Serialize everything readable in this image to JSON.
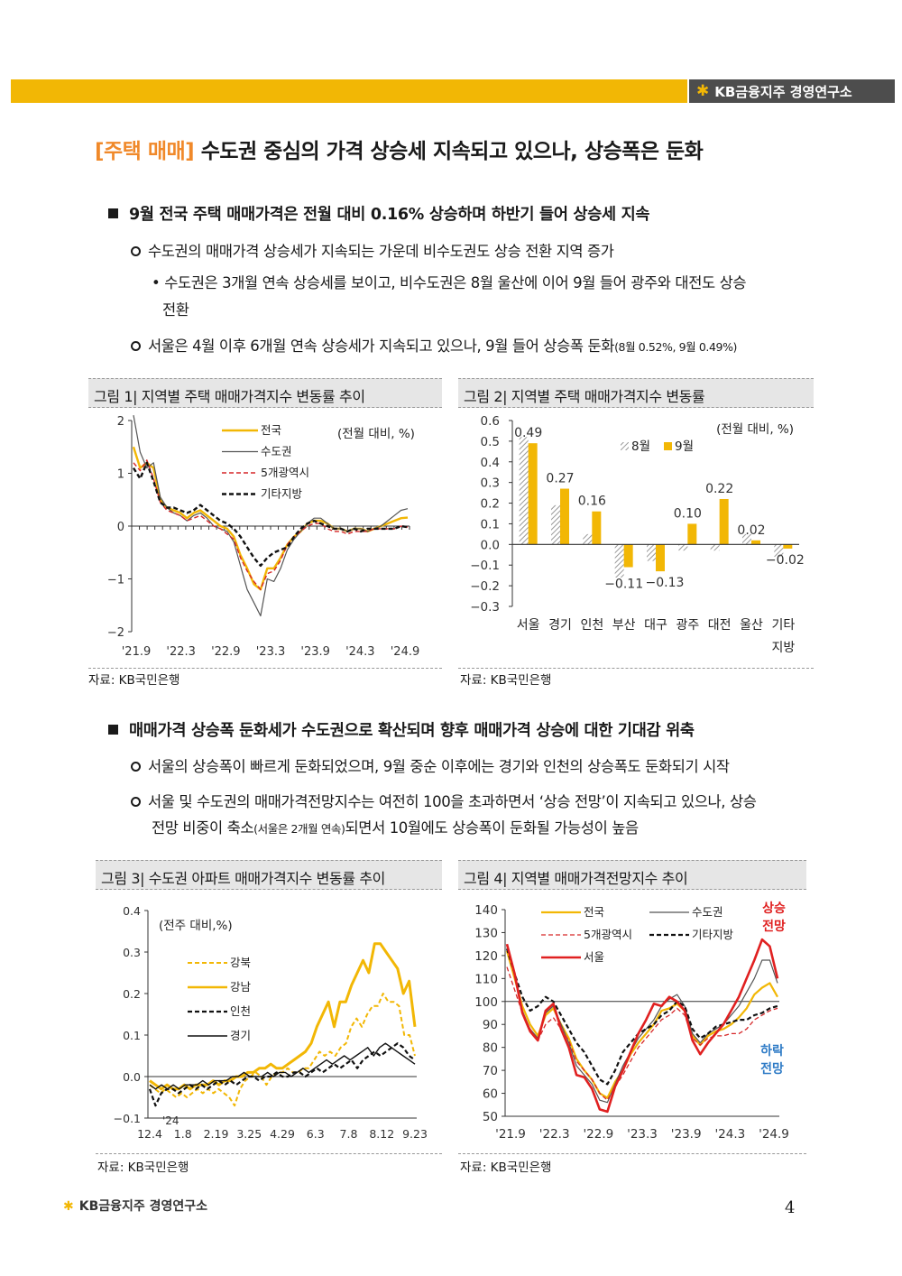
{
  "header": {
    "brand": "KB금융지주 경영연구소"
  },
  "title": {
    "tag": "[주택 매매]",
    "text": "수도권 중심의 가격 상승세 지속되고 있으나, 상승폭은 둔화"
  },
  "section1": {
    "heading": "9월 전국 주택 매매가격은 전월 대비 0.16% 상승하며 하반기 들어 상승세 지속",
    "b1": "수도권의 매매가격 상승세가 지속되는 가운데 비수도권도 상승 전환 지역 증가",
    "b1_sub_line1": "수도권은 3개월 연속 상승세를 보이고, 비수도권은 8월 울산에 이어 9월 들어 광주와 대전도 상승",
    "b1_sub_line2": "전환",
    "b2_main": "서울은 4월 이후 6개월 연속 상승세가 지속되고 있으나, 9월 들어 상승폭 둔화",
    "b2_small": "(8월 0.52%, 9월 0.49%)"
  },
  "section2": {
    "heading": "매매가격 상승폭 둔화세가 수도권으로 확산되며 향후 매매가격 상승에 대한 기대감 위축",
    "b1": "서울의 상승폭이 빠르게 둔화되었으며, 9월 중순 이후에는 경기와 인천의 상승폭도 둔화되기 시작",
    "b2_line1": "서울 및 수도권의 매매가격전망지수는 여전히 100을 초과하면서 ‘상승 전망’이 지속되고 있으나, 상승",
    "b2_line2_a": "전망 비중이 축소",
    "b2_line2_small": "(서울은 2개월 연속)",
    "b2_line2_b": "되면서 10월에도 상승폭이 둔화될 가능성이 높음"
  },
  "source_label": "자료: KB국민은행",
  "page_number": "4",
  "footer": {
    "brand": "KB금융지주 경영연구소"
  },
  "chart_data": [
    {
      "id": "fig1",
      "type": "line",
      "caption": "그림 1| 지역별 주택 매매가격지수 변동률 추이",
      "unit_note": "(전월 대비, %)",
      "x_labels": [
        "'21.9",
        "'22.3",
        "'22.9",
        "'23.3",
        "'23.9",
        "'24.3",
        "'24.9"
      ],
      "y_ticks": [
        "2",
        "1",
        "0",
        "−1",
        "−2"
      ],
      "ylim": [
        -2,
        2
      ],
      "series": [
        {
          "name": "전국",
          "color": "#f2b705",
          "style": "solid",
          "width": 2.4,
          "values": [
            1.5,
            1.1,
            1.2,
            1.1,
            0.5,
            0.35,
            0.3,
            0.25,
            0.15,
            0.25,
            0.3,
            0.2,
            0.1,
            0.0,
            -0.05,
            -0.2,
            -0.55,
            -0.8,
            -1.1,
            -1.2,
            -0.8,
            -0.8,
            -0.6,
            -0.35,
            -0.2,
            -0.1,
            0.05,
            0.1,
            0.1,
            0.05,
            -0.05,
            -0.05,
            -0.1,
            -0.05,
            -0.05,
            -0.1,
            -0.05,
            0.0,
            0.05,
            0.1,
            0.15,
            0.16
          ]
        },
        {
          "name": "수도권",
          "color": "#555555",
          "style": "solid",
          "width": 1.2,
          "values": [
            2.1,
            1.4,
            1.1,
            1.2,
            0.55,
            0.35,
            0.25,
            0.2,
            0.1,
            0.2,
            0.25,
            0.15,
            0.0,
            -0.05,
            -0.1,
            -0.3,
            -0.75,
            -1.2,
            -1.45,
            -1.7,
            -1.0,
            -1.05,
            -0.8,
            -0.45,
            -0.25,
            -0.1,
            0.05,
            0.15,
            0.15,
            0.05,
            -0.05,
            -0.05,
            -0.1,
            -0.05,
            -0.05,
            -0.1,
            -0.05,
            0.0,
            0.1,
            0.2,
            0.3,
            0.33
          ]
        },
        {
          "name": "5개광역시",
          "color": "#d62728",
          "style": "dashed",
          "width": 1.4,
          "values": [
            1.2,
            1.05,
            1.25,
            0.9,
            0.45,
            0.3,
            0.25,
            0.2,
            0.1,
            0.15,
            0.2,
            0.1,
            0.0,
            -0.05,
            -0.15,
            -0.25,
            -0.6,
            -0.85,
            -1.05,
            -1.2,
            -0.9,
            -0.85,
            -0.65,
            -0.35,
            -0.2,
            -0.1,
            0.0,
            0.05,
            0.05,
            -0.05,
            -0.1,
            -0.1,
            -0.15,
            -0.1,
            -0.1,
            -0.1,
            -0.05,
            -0.05,
            -0.05,
            -0.05,
            0.0,
            -0.02
          ]
        },
        {
          "name": "기타지방",
          "color": "#111111",
          "style": "dashed",
          "width": 2.4,
          "values": [
            1.1,
            0.9,
            1.2,
            0.85,
            0.45,
            0.35,
            0.35,
            0.3,
            0.25,
            0.3,
            0.4,
            0.3,
            0.2,
            0.1,
            0.05,
            -0.05,
            -0.2,
            -0.4,
            -0.6,
            -0.75,
            -0.6,
            -0.5,
            -0.45,
            -0.4,
            -0.2,
            -0.05,
            0.05,
            0.1,
            0.05,
            0.0,
            -0.05,
            -0.05,
            -0.1,
            -0.05,
            -0.1,
            -0.05,
            -0.05,
            -0.05,
            -0.05,
            -0.05,
            0.0,
            -0.02
          ]
        }
      ]
    },
    {
      "id": "fig2",
      "type": "bar",
      "caption": "그림 2| 지역별 주택 매매가격지수 변동률",
      "unit_note": "(전월 대비, %)",
      "categories": [
        "서울",
        "경기",
        "인천",
        "부산",
        "대구",
        "광주",
        "대전",
        "울산",
        "기타"
      ],
      "category_line2": {
        "기타": "지방"
      },
      "y_ticks": [
        "0.6",
        "0.5",
        "0.4",
        "0.3",
        "0.2",
        "0.1",
        "0.0",
        "−0.1",
        "−0.2",
        "−0.3"
      ],
      "ylim": [
        -0.3,
        0.6
      ],
      "series": [
        {
          "name": "8월",
          "color": "#aaaaaa",
          "pattern": "hatch",
          "values": [
            0.52,
            0.19,
            0.05,
            -0.16,
            -0.08,
            -0.03,
            -0.03,
            0.05,
            -0.06
          ]
        },
        {
          "name": "9월",
          "color": "#f2b705",
          "values": [
            0.49,
            0.27,
            0.16,
            -0.11,
            -0.13,
            0.1,
            0.22,
            0.02,
            -0.02
          ]
        }
      ],
      "value_labels": [
        "0.49",
        "0.27",
        "0.16",
        "−0.11",
        "−0.13",
        "0.10",
        "0.22",
        "0.02",
        "−0.02"
      ]
    },
    {
      "id": "fig3",
      "type": "line",
      "caption": "그림 3| 수도권 아파트 매매가격지수 변동률 추이",
      "unit_note": "(전주 대비,%)",
      "x_labels": [
        "12.4",
        "1.8",
        "2.19",
        "3.25",
        "4.29",
        "6.3",
        "7.8",
        "8.12",
        "9.23"
      ],
      "x_year_note": "'24",
      "y_ticks": [
        "0.4",
        "0.3",
        "0.2",
        "0.1",
        "0.0",
        "−0.1"
      ],
      "ylim": [
        -0.1,
        0.4
      ],
      "series": [
        {
          "name": "강북",
          "color": "#f2b705",
          "style": "dashed",
          "width": 2,
          "values": [
            -0.02,
            -0.03,
            -0.04,
            -0.03,
            -0.04,
            -0.05,
            -0.04,
            -0.05,
            -0.04,
            -0.03,
            -0.04,
            -0.03,
            -0.04,
            -0.03,
            -0.04,
            -0.05,
            -0.07,
            -0.03,
            -0.01,
            0.0,
            0.01,
            0.0,
            -0.02,
            0.0,
            0.01,
            0.01,
            0.02,
            0.01,
            0.01,
            0.02,
            0.02,
            0.04,
            0.06,
            0.05,
            0.06,
            0.05,
            0.07,
            0.08,
            0.12,
            0.14,
            0.12,
            0.15,
            0.17,
            0.17,
            0.2,
            0.18,
            0.18,
            0.17,
            0.1,
            0.1,
            0.05
          ]
        },
        {
          "name": "강남",
          "color": "#f2b705",
          "style": "solid",
          "width": 3,
          "values": [
            -0.01,
            -0.02,
            -0.03,
            -0.02,
            -0.03,
            -0.03,
            -0.02,
            -0.03,
            -0.02,
            -0.02,
            -0.02,
            -0.01,
            -0.02,
            -0.01,
            -0.01,
            0.0,
            0.0,
            0.01,
            0.01,
            0.02,
            0.02,
            0.03,
            0.02,
            0.02,
            0.03,
            0.04,
            0.05,
            0.06,
            0.08,
            0.12,
            0.15,
            0.18,
            0.12,
            0.18,
            0.18,
            0.22,
            0.25,
            0.28,
            0.25,
            0.32,
            0.32,
            0.3,
            0.28,
            0.26,
            0.2,
            0.23,
            0.12
          ]
        },
        {
          "name": "인천",
          "color": "#111111",
          "style": "dashed",
          "width": 2.2,
          "values": [
            -0.03,
            -0.07,
            -0.04,
            -0.03,
            -0.03,
            -0.04,
            -0.03,
            -0.02,
            -0.03,
            -0.02,
            -0.03,
            -0.02,
            -0.01,
            -0.02,
            -0.01,
            -0.02,
            -0.01,
            0.0,
            0.0,
            -0.01,
            0.0,
            0.0,
            0.01,
            0.0,
            0.0,
            0.01,
            0.01,
            0.0,
            0.01,
            0.02,
            0.01,
            0.02,
            0.03,
            0.02,
            0.03,
            0.04,
            0.02,
            0.04,
            0.05,
            0.06,
            0.05,
            0.06,
            0.07,
            0.08,
            0.07,
            0.05,
            0.04
          ]
        },
        {
          "name": "경기",
          "color": "#111111",
          "style": "solid",
          "width": 1.4,
          "values": [
            -0.02,
            -0.03,
            -0.02,
            -0.03,
            -0.02,
            -0.03,
            -0.02,
            -0.02,
            -0.02,
            -0.01,
            -0.02,
            -0.01,
            -0.01,
            -0.01,
            0.0,
            0.0,
            0.01,
            0.0,
            0.0,
            0.0,
            0.01,
            0.0,
            0.01,
            0.01,
            0.0,
            0.01,
            0.02,
            0.01,
            0.02,
            0.03,
            0.04,
            0.03,
            0.04,
            0.05,
            0.04,
            0.05,
            0.06,
            0.07,
            0.05,
            0.07,
            0.08,
            0.07,
            0.06,
            0.05,
            0.04,
            0.03
          ]
        }
      ]
    },
    {
      "id": "fig4",
      "type": "line",
      "caption": "그림 4| 지역별 매매가격전망지수 추이",
      "x_labels": [
        "'21.9",
        "'22.3",
        "'22.9",
        "'23.3",
        "'23.9",
        "'24.3",
        "'24.9"
      ],
      "y_ticks": [
        "140",
        "130",
        "120",
        "110",
        "100",
        "90",
        "80",
        "70",
        "60",
        "50"
      ],
      "ylim": [
        50,
        140
      ],
      "reference_line": 100,
      "annotation_up": [
        "상승",
        "전망"
      ],
      "annotation_down": [
        "하락",
        "전망"
      ],
      "series": [
        {
          "name": "전국",
          "color": "#f2b705",
          "style": "solid",
          "width": 2.2,
          "values": [
            122,
            110,
            98,
            90,
            85,
            94,
            97,
            90,
            84,
            75,
            70,
            66,
            60,
            58,
            65,
            70,
            77,
            82,
            86,
            90,
            96,
            97,
            99,
            96,
            85,
            81,
            85,
            87,
            88,
            90,
            93,
            97,
            103,
            106,
            108,
            102
          ]
        },
        {
          "name": "수도권",
          "color": "#555555",
          "style": "solid",
          "width": 1.2,
          "values": [
            124,
            112,
            96,
            88,
            84,
            95,
            98,
            90,
            82,
            72,
            68,
            64,
            57,
            56,
            64,
            72,
            78,
            84,
            88,
            92,
            98,
            101,
            103,
            98,
            86,
            82,
            86,
            88,
            90,
            94,
            98,
            104,
            110,
            118,
            118,
            108
          ]
        },
        {
          "name": "5개광역시",
          "color": "#d62728",
          "style": "dashed",
          "width": 1.3,
          "values": [
            115,
            105,
            95,
            88,
            83,
            90,
            93,
            88,
            83,
            74,
            70,
            66,
            60,
            57,
            63,
            68,
            74,
            80,
            84,
            88,
            92,
            94,
            97,
            94,
            84,
            81,
            84,
            85,
            85,
            86,
            86,
            88,
            92,
            94,
            96,
            97
          ]
        },
        {
          "name": "기타지방",
          "color": "#111111",
          "style": "dashed",
          "width": 2.2,
          "values": [
            123,
            112,
            102,
            96,
            98,
            102,
            100,
            94,
            88,
            82,
            78,
            72,
            66,
            64,
            70,
            78,
            82,
            86,
            88,
            90,
            94,
            96,
            100,
            98,
            88,
            84,
            86,
            89,
            90,
            91,
            92,
            92,
            94,
            95,
            97,
            98
          ]
        },
        {
          "name": "서울",
          "color": "#e02020",
          "style": "solid",
          "width": 2.6,
          "values": [
            125,
            112,
            95,
            87,
            83,
            96,
            99,
            88,
            80,
            68,
            67,
            62,
            53,
            52,
            63,
            70,
            78,
            86,
            92,
            99,
            98,
            102,
            100,
            96,
            83,
            77,
            82,
            86,
            90,
            96,
            102,
            110,
            118,
            127,
            124,
            110
          ]
        }
      ]
    }
  ]
}
